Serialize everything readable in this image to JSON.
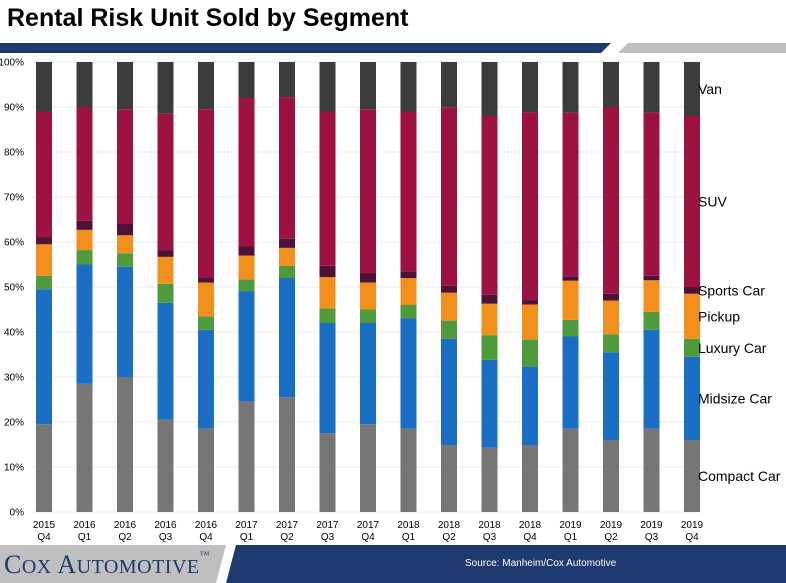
{
  "title": "Rental Risk Unit Sold by Segment",
  "source": "Source: Manheim/Cox Automotive",
  "logo": {
    "name": "Cox Automotive",
    "text_big_c": "C",
    "text_ox": "OX",
    "text_big_a": "A",
    "text_utomotive": "UTOMOTIVE",
    "tm": "™"
  },
  "colors": {
    "navy": "#1f3a6e",
    "gray_bar": "#bfbfbf"
  },
  "chart_data": {
    "type": "bar",
    "stacked": true,
    "normalized": true,
    "title": "Rental Risk Unit Sold by Segment",
    "ylim": [
      0,
      100
    ],
    "yticks": [
      0,
      10,
      20,
      30,
      40,
      50,
      60,
      70,
      80,
      90,
      100
    ],
    "ytick_suffix": "%",
    "categories": [
      [
        "2015",
        "Q4"
      ],
      [
        "2016",
        "Q1"
      ],
      [
        "2016",
        "Q2"
      ],
      [
        "2016",
        "Q3"
      ],
      [
        "2016",
        "Q4"
      ],
      [
        "2017",
        "Q1"
      ],
      [
        "2017",
        "Q2"
      ],
      [
        "2017",
        "Q3"
      ],
      [
        "2017",
        "Q4"
      ],
      [
        "2018",
        "Q1"
      ],
      [
        "2018",
        "Q2"
      ],
      [
        "2018",
        "Q3"
      ],
      [
        "2018",
        "Q4"
      ],
      [
        "2019",
        "Q1"
      ],
      [
        "2019",
        "Q2"
      ],
      [
        "2019",
        "Q3"
      ],
      [
        "2019",
        "Q4"
      ]
    ],
    "legend_placement": "right",
    "series": [
      {
        "name": "Compact Car",
        "color": "#767676",
        "values": [
          19.5,
          28.5,
          30,
          20.5,
          18.5,
          24.5,
          25.5,
          17.5,
          19.5,
          18.5,
          14.8,
          14.3,
          14.8,
          18.5,
          16,
          18.5,
          16
        ]
      },
      {
        "name": "Midsize Car",
        "color": "#1a6fc4",
        "values": [
          30,
          26.5,
          24.5,
          26,
          22,
          24.5,
          26.5,
          24.5,
          22.5,
          24.5,
          23.5,
          19.5,
          17.5,
          20.5,
          19.5,
          22,
          18.5
        ]
      },
      {
        "name": "Luxury Car",
        "color": "#4e9a3d",
        "values": [
          3,
          3.2,
          3,
          4.2,
          3,
          2.7,
          2.7,
          3.2,
          3,
          3,
          4,
          5.5,
          6,
          3.7,
          4,
          4,
          4
        ]
      },
      {
        "name": "Pickup",
        "color": "#f28e1c",
        "values": [
          7,
          4.5,
          4,
          6,
          7.5,
          5.3,
          4,
          7,
          6,
          6,
          6.2,
          7,
          7.8,
          8.7,
          7.5,
          7,
          10
        ]
      },
      {
        "name": "Sports Car",
        "color": "#4d1236",
        "values": [
          1.5,
          2,
          2.5,
          1.5,
          1,
          2,
          2,
          2.5,
          2,
          1.5,
          1.5,
          2,
          1,
          1,
          1.5,
          1,
          1.5
        ]
      },
      {
        "name": "SUV",
        "color": "#9c1343",
        "values": [
          28,
          25.3,
          25.5,
          30.3,
          37.5,
          33,
          31.5,
          34.3,
          36.5,
          35.5,
          39.5,
          39.7,
          41.7,
          36.3,
          41.5,
          36.3,
          38
        ]
      },
      {
        "name": "Van",
        "color": "#3c3c3c",
        "values": [
          11,
          10,
          10.5,
          11.5,
          10.5,
          8,
          7.8,
          11,
          10.5,
          11,
          10,
          12,
          11.2,
          11.3,
          10,
          11.2,
          12
        ]
      }
    ]
  }
}
